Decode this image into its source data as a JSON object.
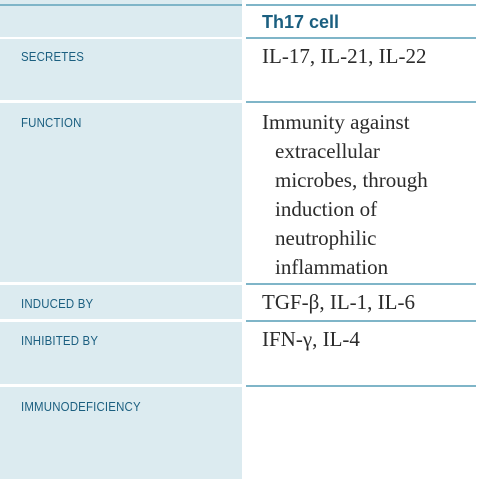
{
  "header": {
    "column_title": "Th17 cell"
  },
  "rows": [
    {
      "label": "SECRETES",
      "value_lines": [
        "IL-17, IL-21, IL-22"
      ]
    },
    {
      "label": "FUNCTION",
      "value_lines": [
        "Immunity against",
        "extracellular",
        "microbes, through",
        "induction of",
        "neutrophilic",
        "inflammation"
      ]
    },
    {
      "label": "INDUCED BY",
      "value_lines": [
        "TGF-β, IL-1, IL-6"
      ]
    },
    {
      "label": "INHIBITED BY",
      "value_lines": [
        "IFN-γ, IL-4"
      ]
    },
    {
      "label": "IMMUNODEFICIENCY",
      "value_lines": []
    }
  ],
  "colors": {
    "label_background": "#dcebf0",
    "rule": "#7fb5c8",
    "label_text": "#1b5f80",
    "value_text": "#2b2b2b"
  }
}
